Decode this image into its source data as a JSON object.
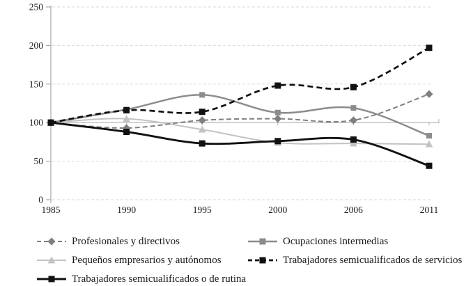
{
  "figure": {
    "kind": "indexed line chart (base 1985 = 100), occupational groups in Spain",
    "background": "#ffffff",
    "text_color": "#1a1a1a"
  },
  "chart_data": {
    "type": "line",
    "title": "",
    "xlabel": "",
    "ylabel": "",
    "categories": [
      "1985",
      "1990",
      "1995",
      "2000",
      "2006",
      "2011"
    ],
    "series": [
      {
        "name": "Profesionales y directivos",
        "values": [
          100,
          93,
          103,
          105,
          103,
          137
        ],
        "color": "#7f7f7f",
        "line_style": "dashed",
        "dash": "7 4",
        "width": 2,
        "marker": "diamond"
      },
      {
        "name": "Ocupaciones intermedias",
        "values": [
          100,
          117,
          136,
          113,
          119,
          83
        ],
        "color": "#8c8c8c",
        "line_style": "solid",
        "dash": "",
        "width": 2.5,
        "marker": "square"
      },
      {
        "name": "Pequeños empresarios y autónomos",
        "values": [
          100,
          105,
          91,
          74,
          73,
          72
        ],
        "color": "#c3c3c3",
        "line_style": "solid",
        "dash": "",
        "width": 2,
        "marker": "triangle"
      },
      {
        "name": "Trabajadores semicualificados de servicios",
        "values": [
          100,
          116,
          114,
          148,
          146,
          197
        ],
        "color": "#111111",
        "line_style": "dashed",
        "dash": "8 5",
        "width": 2.7,
        "marker": "square"
      },
      {
        "name": "Trabajadores semicualificados o de rutina",
        "values": [
          100,
          88,
          73,
          76,
          78,
          44
        ],
        "color": "#111111",
        "line_style": "solid",
        "dash": "",
        "width": 2.9,
        "marker": "square"
      }
    ],
    "yticks": [
      0,
      50,
      100,
      150,
      200,
      250
    ],
    "ylim": [
      0,
      250
    ],
    "reference_line": 100,
    "grid": "horizontal dashed",
    "grid_color": "#d9d9d9",
    "axis_color": "#a8a8a8",
    "reference_line_color": "#b5b5b5",
    "legend_position": "bottom, two columns",
    "legend_columns": [
      [
        0,
        2,
        4
      ],
      [
        1,
        3
      ]
    ]
  }
}
